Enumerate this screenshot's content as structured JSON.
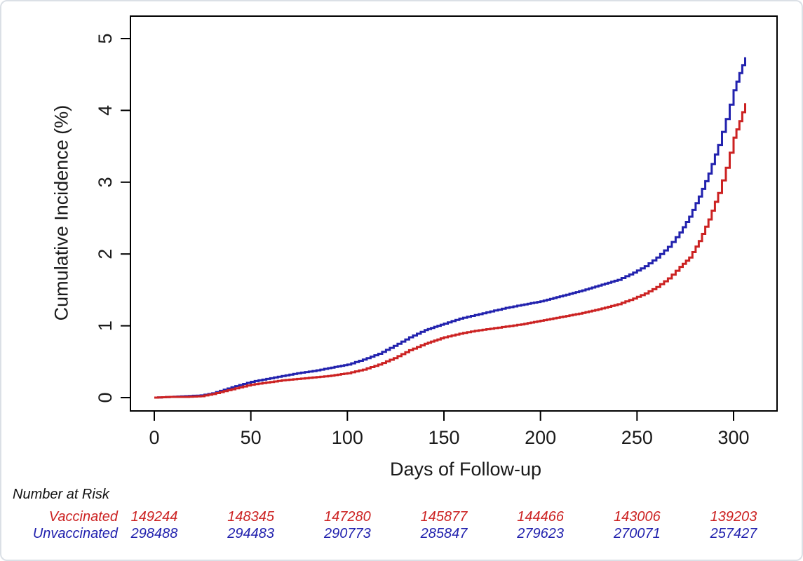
{
  "figure": {
    "background": "#ffffff",
    "border_color": "#dbe0e6",
    "axis_color": "#000000",
    "text_color": "#1a1a1a"
  },
  "chart_data": {
    "type": "line",
    "title": "",
    "xlabel": "Days of Follow-up",
    "ylabel": "Cumulative Incidence (%)",
    "xlim": [
      -12,
      322
    ],
    "ylim": [
      -0.19,
      5.31
    ],
    "x_ticks": [
      0,
      50,
      100,
      150,
      200,
      250,
      300
    ],
    "y_ticks": [
      0,
      1,
      2,
      3,
      4,
      5
    ],
    "grid": false,
    "legend_position": "none",
    "curve_style": "step",
    "series": [
      {
        "name": "Unvaccinated",
        "color": "#2222AE",
        "points": [
          [
            0,
            0
          ],
          [
            8,
            0.01
          ],
          [
            16,
            0.02
          ],
          [
            24,
            0.03
          ],
          [
            30,
            0.06
          ],
          [
            36,
            0.11
          ],
          [
            42,
            0.16
          ],
          [
            50,
            0.22
          ],
          [
            58,
            0.26
          ],
          [
            66,
            0.3
          ],
          [
            74,
            0.34
          ],
          [
            82,
            0.37
          ],
          [
            90,
            0.41
          ],
          [
            100,
            0.46
          ],
          [
            108,
            0.53
          ],
          [
            116,
            0.61
          ],
          [
            124,
            0.72
          ],
          [
            132,
            0.84
          ],
          [
            140,
            0.94
          ],
          [
            150,
            1.03
          ],
          [
            158,
            1.1
          ],
          [
            166,
            1.15
          ],
          [
            174,
            1.2
          ],
          [
            182,
            1.25
          ],
          [
            190,
            1.29
          ],
          [
            200,
            1.34
          ],
          [
            210,
            1.41
          ],
          [
            220,
            1.48
          ],
          [
            230,
            1.56
          ],
          [
            240,
            1.64
          ],
          [
            248,
            1.74
          ],
          [
            254,
            1.83
          ],
          [
            260,
            1.95
          ],
          [
            266,
            2.1
          ],
          [
            272,
            2.3
          ],
          [
            277,
            2.52
          ],
          [
            282,
            2.8
          ],
          [
            287,
            3.12
          ],
          [
            292,
            3.52
          ],
          [
            296,
            3.88
          ],
          [
            300,
            4.28
          ],
          [
            303,
            4.52
          ],
          [
            306,
            4.74
          ]
        ]
      },
      {
        "name": "Vaccinated",
        "color": "#CC2222",
        "points": [
          [
            0,
            0
          ],
          [
            8,
            0.01
          ],
          [
            16,
            0.01
          ],
          [
            24,
            0.02
          ],
          [
            30,
            0.05
          ],
          [
            36,
            0.09
          ],
          [
            42,
            0.13
          ],
          [
            50,
            0.18
          ],
          [
            58,
            0.21
          ],
          [
            66,
            0.24
          ],
          [
            74,
            0.26
          ],
          [
            82,
            0.28
          ],
          [
            90,
            0.3
          ],
          [
            100,
            0.34
          ],
          [
            108,
            0.39
          ],
          [
            116,
            0.46
          ],
          [
            124,
            0.55
          ],
          [
            132,
            0.66
          ],
          [
            140,
            0.75
          ],
          [
            150,
            0.84
          ],
          [
            158,
            0.89
          ],
          [
            166,
            0.93
          ],
          [
            174,
            0.96
          ],
          [
            182,
            0.99
          ],
          [
            190,
            1.02
          ],
          [
            200,
            1.07
          ],
          [
            210,
            1.12
          ],
          [
            220,
            1.17
          ],
          [
            230,
            1.23
          ],
          [
            240,
            1.3
          ],
          [
            248,
            1.38
          ],
          [
            254,
            1.45
          ],
          [
            260,
            1.54
          ],
          [
            266,
            1.66
          ],
          [
            272,
            1.82
          ],
          [
            277,
            1.95
          ],
          [
            282,
            2.18
          ],
          [
            287,
            2.48
          ],
          [
            292,
            2.85
          ],
          [
            296,
            3.2
          ],
          [
            300,
            3.62
          ],
          [
            303,
            3.85
          ],
          [
            306,
            4.1
          ]
        ]
      }
    ]
  },
  "risk_table": {
    "heading": "Number at Risk",
    "days": [
      0,
      50,
      100,
      150,
      200,
      250,
      300
    ],
    "rows": [
      {
        "label": "Vaccinated",
        "color": "#CC2222",
        "values": [
          "149244",
          "148345",
          "147280",
          "145877",
          "144466",
          "143006",
          "139203"
        ]
      },
      {
        "label": "Unvaccinated",
        "color": "#2222AE",
        "values": [
          "298488",
          "294483",
          "290773",
          "285847",
          "279623",
          "270071",
          "257427"
        ]
      }
    ]
  }
}
